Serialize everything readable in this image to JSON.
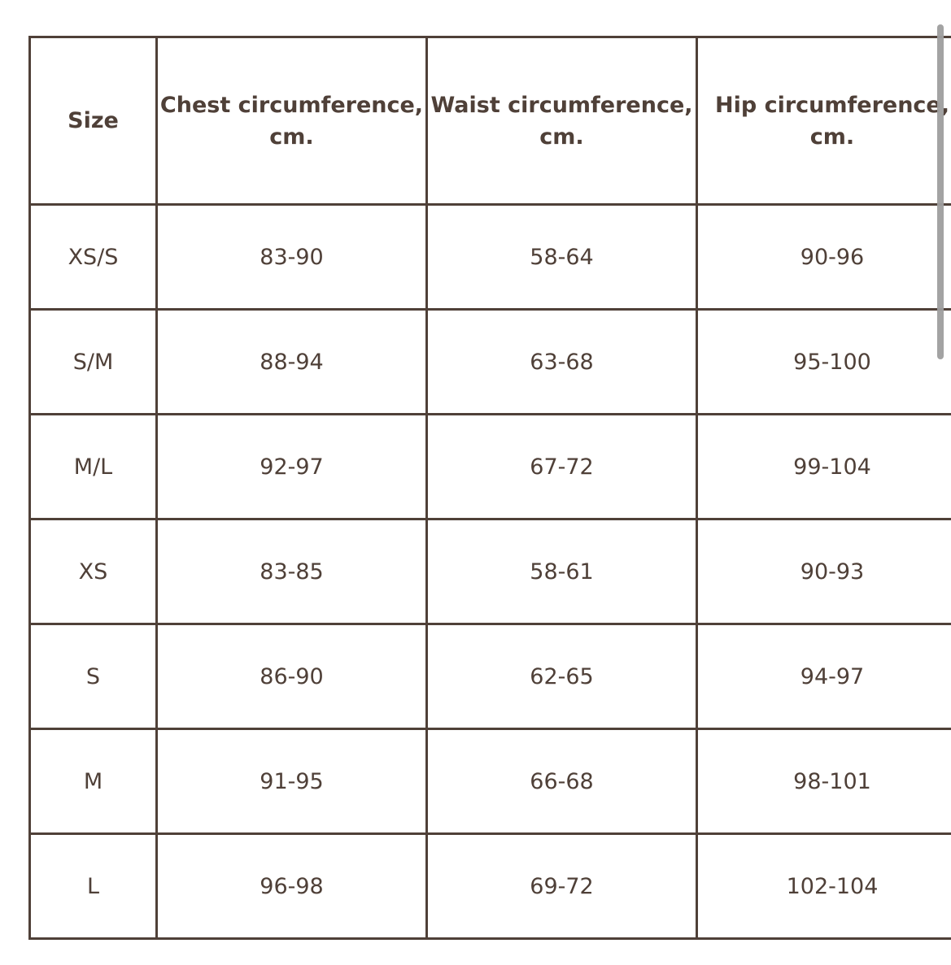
{
  "table": {
    "headers": [
      "Size",
      "Chest circumference, cm.",
      "Waist circumference, cm.",
      "Hip circumference, cm."
    ],
    "rows": [
      [
        "XS/S",
        "83-90",
        "58-64",
        "90-96"
      ],
      [
        "S/M",
        "88-94",
        "63-68",
        "95-100"
      ],
      [
        "M/L",
        "92-97",
        "67-72",
        "99-104"
      ],
      [
        "XS",
        "83-85",
        "58-61",
        "90-93"
      ],
      [
        "S",
        "86-90",
        "62-65",
        "94-97"
      ],
      [
        "M",
        "91-95",
        "66-68",
        "98-101"
      ],
      [
        "L",
        "96-98",
        "69-72",
        "102-104"
      ]
    ]
  },
  "colors": {
    "border": "#4f4038",
    "text": "#4f4038",
    "scrollbar": "#9e9e9e"
  }
}
